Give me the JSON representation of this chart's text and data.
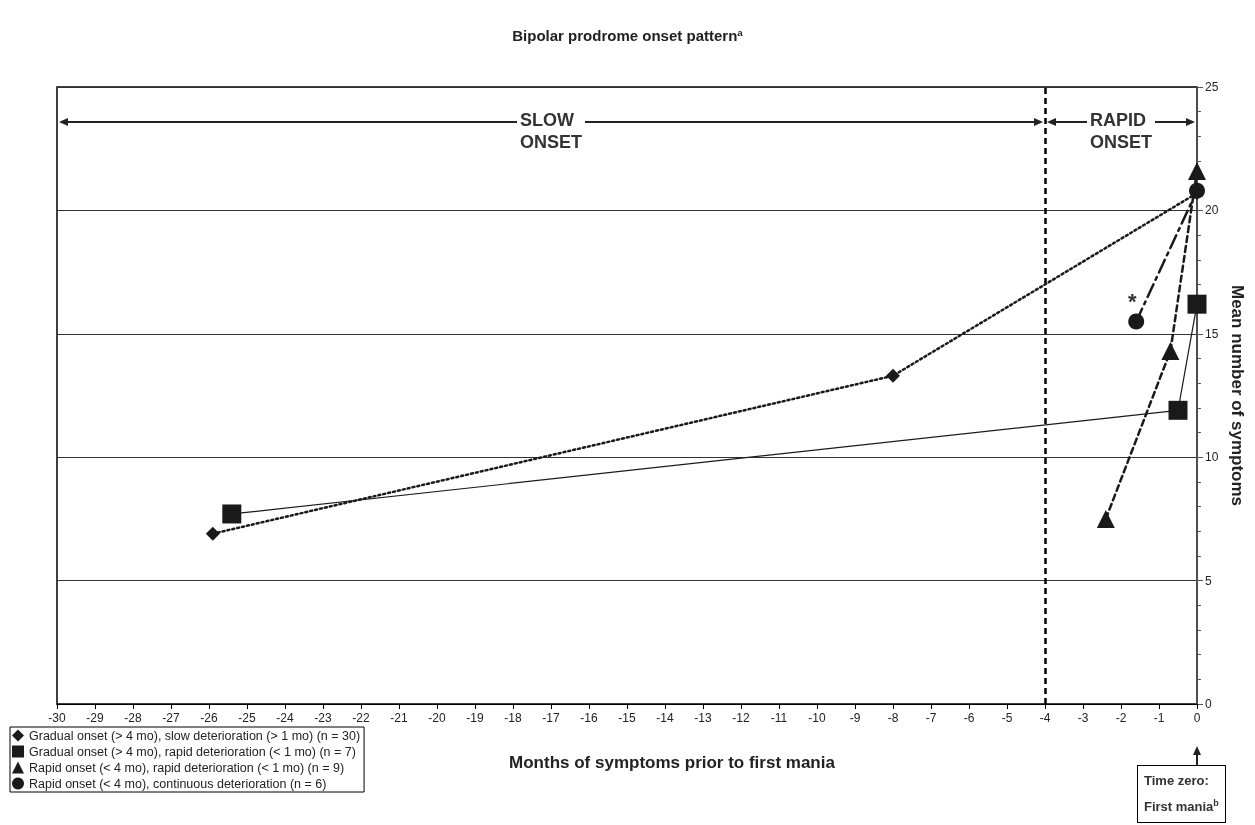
{
  "chart_data": {
    "type": "line",
    "title": "Bipolar prodrome onset pattern$^{a}$",
    "xlabel": "Months of symptoms prior to first mania",
    "ylabel": "Mean number of symptoms",
    "xlim": [
      -30,
      0
    ],
    "xticks": [
      -30,
      -29,
      -28,
      -27,
      -26,
      -25,
      -24,
      -23,
      -22,
      -21,
      -20,
      -19,
      -18,
      -17,
      -16,
      -15,
      -14,
      -13,
      -12,
      -11,
      -10,
      -9,
      -8,
      -7,
      -6,
      -5,
      -4,
      -3,
      -2,
      -1,
      0
    ],
    "ylim": [
      0,
      25
    ],
    "yticks": [
      0,
      5,
      10,
      15,
      20,
      25
    ],
    "grid": "y",
    "legend": "bottom left",
    "series": [
      {
        "name": "Gradual onset (> 4 mo), slow deterioration (> 1 mo) (n = 30)",
        "color": "#1a1a1a",
        "marker": "diamond",
        "line_style": "dotted",
        "x": [
          -25.9,
          -8,
          0
        ],
        "values": [
          6.9,
          13.3,
          20.7
        ]
      },
      {
        "name": "Gradual onset (> 4 mo), rapid deterioration (< 1 mo) (n = 7)",
        "color": "#1a1a1a",
        "marker": "square",
        "line_style": "solid",
        "x": [
          -25.4,
          -0.5,
          0
        ],
        "values": [
          7.7,
          11.9,
          16.2
        ]
      },
      {
        "name": "Rapid onset (< 4 mo), rapid deterioration (< 1 mo) (n = 9)",
        "color": "#1a1a1a",
        "marker": "triangle",
        "line_style": "dashed",
        "x": [
          -2.4,
          -0.7,
          0
        ],
        "values": [
          7.5,
          14.3,
          21.6
        ]
      },
      {
        "name": "Rapid onset (< 4 mo), continuous deterioration (n = 6)",
        "color": "#1a1a1a",
        "marker": "circle",
        "line_style": "dashdot",
        "x": [
          -1.6,
          0
        ],
        "values": [
          15.5,
          20.8
        ]
      }
    ],
    "ref_lines": [
      {
        "axis": "x",
        "value": -4,
        "color": "#000000",
        "line_style": "dashed"
      }
    ],
    "annotations": [
      "SLOW ONSET",
      "RAPID ONSET",
      "*",
      "Time zero: First mania$^{b}$"
    ]
  }
}
